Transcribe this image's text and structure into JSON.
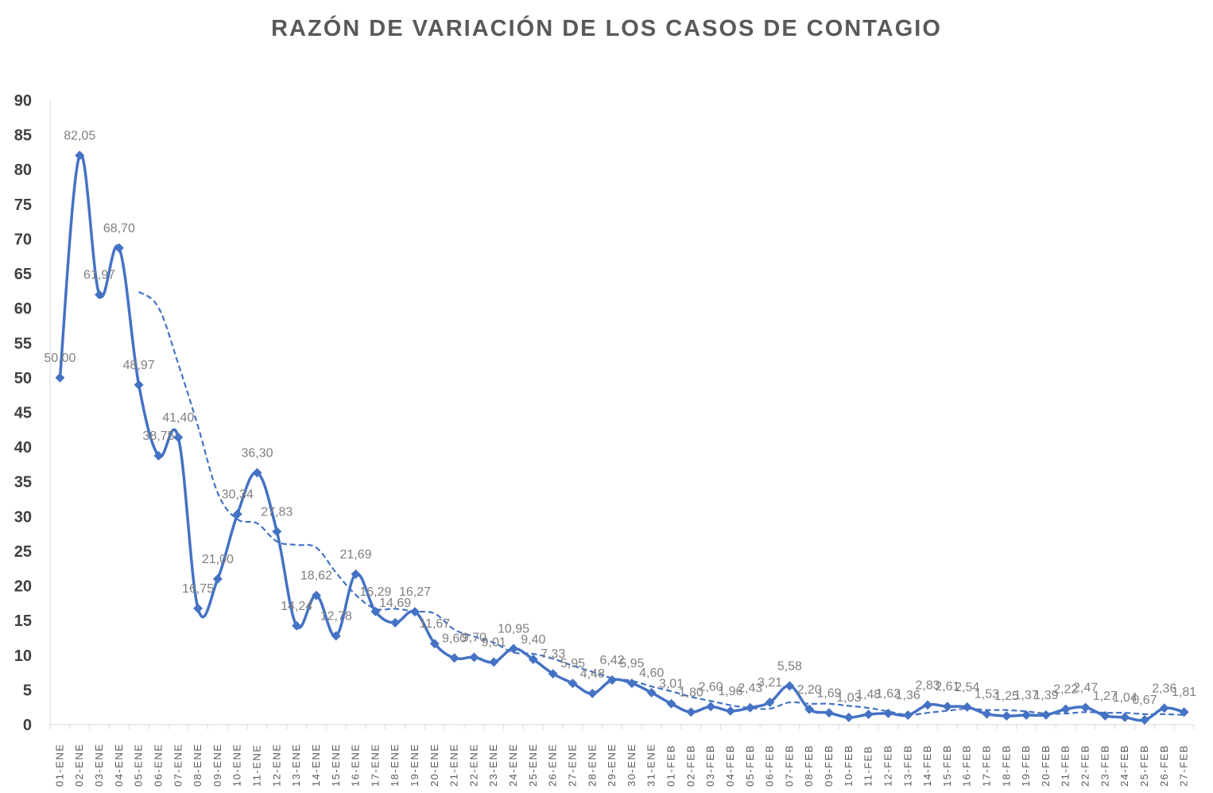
{
  "chart_data": {
    "type": "line",
    "title": "RAZÓN DE VARIACIÓN DE LOS CASOS DE CONTAGIO",
    "xlabel": "",
    "ylabel": "",
    "ylim": [
      0,
      90
    ],
    "yticks": [
      0,
      5,
      10,
      15,
      20,
      25,
      30,
      35,
      40,
      45,
      50,
      55,
      60,
      65,
      70,
      75,
      80,
      85,
      90
    ],
    "grid": false,
    "legend": "none",
    "colors": {
      "series": "#4472c4",
      "label": "#7f7f7f",
      "axis": "#d9d9d9"
    },
    "categories": [
      "01-ENE",
      "02-ENE",
      "03-ENE",
      "04-ENE",
      "05-ENE",
      "06-ENE",
      "07-ENE",
      "08-ENE",
      "09-ENE",
      "10-ENE",
      "11-ENE",
      "12-ENE",
      "13-ENE",
      "14-ENE",
      "15-ENE",
      "16-ENE",
      "17-ENE",
      "18-ENE",
      "19-ENE",
      "20-ENE",
      "21-ENE",
      "22-ENE",
      "23-ENE",
      "24-ENE",
      "25-ENE",
      "26-ENE",
      "27-ENE",
      "28-ENE",
      "29-ENE",
      "30-ENE",
      "31-ENE",
      "01-FEB",
      "02-FEB",
      "03-FEB",
      "04-FEB",
      "05-FEB",
      "06-FEB",
      "07-FEB",
      "08-FEB",
      "09-FEB",
      "10-FEB",
      "11-FEB",
      "12-FEB",
      "13-FEB",
      "14-FEB",
      "15-FEB",
      "16-FEB",
      "17-FEB",
      "18-FEB",
      "19-FEB",
      "20-FEB",
      "21-FEB",
      "22-FEB",
      "23-FEB",
      "24-FEB",
      "25-FEB",
      "26-FEB",
      "27-FEB"
    ],
    "series": [
      {
        "kind": "values",
        "values": [
          50.0,
          82.05,
          61.97,
          68.7,
          48.97,
          38.75,
          41.4,
          16.75,
          21.0,
          30.34,
          36.3,
          27.83,
          14.24,
          18.62,
          12.78,
          21.69,
          16.29,
          14.69,
          16.27,
          11.67,
          9.6,
          9.7,
          9.01,
          10.95,
          9.4,
          7.33,
          5.95,
          4.48,
          6.42,
          5.95,
          4.6,
          3.01,
          1.8,
          2.6,
          1.96,
          2.43,
          3.21,
          5.58,
          2.2,
          1.69,
          1.03,
          1.48,
          1.62,
          1.36,
          2.83,
          2.61,
          2.54,
          1.53,
          1.25,
          1.37,
          1.39,
          2.22,
          2.47,
          1.27,
          1.04,
          0.67,
          2.36,
          1.81
        ],
        "labels": [
          "50,00",
          "82,05",
          "61,97",
          "68,70",
          "48,97",
          "38,75",
          "41,40",
          "16,75",
          "21,00",
          "30,34",
          "36,30",
          "27,83",
          "14,24",
          "18,62",
          "12,78",
          "21,69",
          "16,29",
          "14,69",
          "16,27",
          "11,67",
          "9,60",
          "9,70",
          "9,01",
          "10,95",
          "9,40",
          "7,33",
          "5,95",
          "4,48",
          "6,42",
          "5,95",
          "4,60",
          "3,01",
          "1,80",
          "2,60",
          "1,96",
          "2,43",
          "3,21",
          "5,58",
          "2,20",
          "1,69",
          "1,03",
          "1,48",
          "1,62",
          "1,36",
          "2,83",
          "2,61",
          "2,54",
          "1,53",
          "1,25",
          "1,37",
          "1,39",
          "2,22",
          "2,47",
          "1,27",
          "1,04",
          "0,67",
          "2,36",
          "1,81"
        ]
      },
      {
        "kind": "moving-average-trend",
        "values": [
          null,
          null,
          null,
          null,
          62.4,
          60.1,
          52.0,
          43.0,
          33.4,
          29.6,
          29.0,
          26.4,
          25.9,
          25.5,
          21.9,
          18.7,
          16.7,
          16.7,
          16.3,
          16.0,
          13.7,
          12.7,
          11.8,
          10.4,
          10.2,
          9.5,
          8.5,
          7.6,
          6.7,
          6.3,
          5.5,
          4.8,
          4.0,
          3.4,
          2.8,
          2.4,
          2.3,
          3.2,
          3.0,
          3.0,
          2.7,
          2.4,
          1.9,
          1.4,
          1.7,
          2.0,
          2.3,
          2.1,
          2.1,
          1.9,
          1.6,
          1.6,
          1.8,
          1.7,
          1.7,
          1.5,
          1.5,
          1.4
        ]
      }
    ]
  }
}
